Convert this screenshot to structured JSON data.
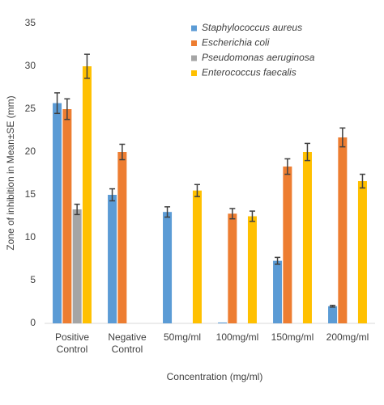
{
  "chart_data": {
    "type": "bar",
    "y_label": "Zone of inhibition in Mean±SE (mm)",
    "x_label": "Concentration (mg/ml)",
    "categories": [
      "Positive Control",
      "Negative Control",
      "50mg/ml",
      "100mg/ml",
      "150mg/ml",
      "200mg/ml"
    ],
    "series": [
      {
        "name": "Staphylococcus aureus",
        "color": "#5b9bd5",
        "values": [
          25.7,
          15,
          13,
          0.1,
          7.3,
          2
        ],
        "errors": [
          1.2,
          0.7,
          0.6,
          0,
          0.4,
          0.1
        ]
      },
      {
        "name": "Escherichia coli",
        "color": "#ed7d31",
        "values": [
          25,
          20,
          0,
          12.8,
          18.3,
          21.7
        ],
        "errors": [
          1.2,
          0.9,
          0,
          0.6,
          0.9,
          1.1
        ]
      },
      {
        "name": "Pseudomonas aeruginosa",
        "color": "#a5a5a5",
        "values": [
          13.3,
          0,
          0,
          0,
          0,
          0
        ],
        "errors": [
          0.6,
          0,
          0,
          0,
          0,
          0
        ]
      },
      {
        "name": "Enterococcus faecalis",
        "color": "#ffc000",
        "values": [
          30,
          0,
          15.5,
          12.5,
          20,
          16.6
        ],
        "errors": [
          1.4,
          0,
          0.7,
          0.6,
          1,
          0.8
        ]
      }
    ],
    "ylim": [
      0,
      35
    ],
    "yticks": [
      0,
      5,
      10,
      15,
      20,
      25,
      30,
      35
    ],
    "grid": false,
    "legend": "top-right"
  }
}
